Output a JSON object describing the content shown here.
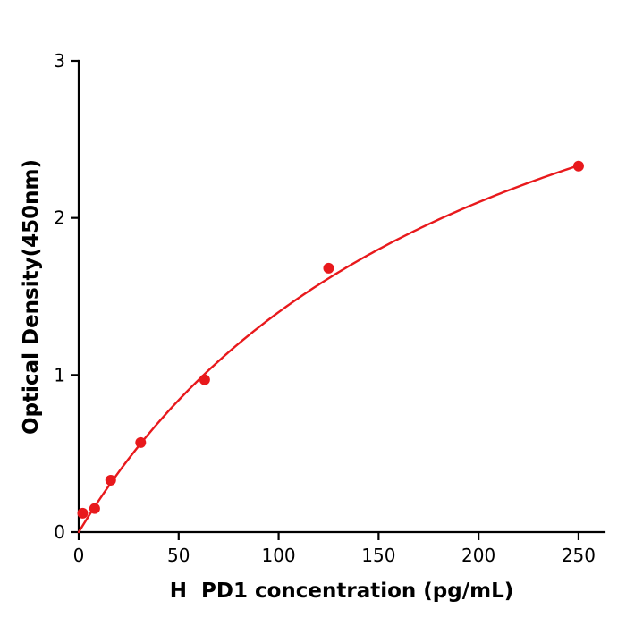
{
  "page": {
    "background": "#ffffff"
  },
  "chart_data": {
    "type": "scatter",
    "title": "",
    "xlabel": "H  PD1 concentration (pg/mL)",
    "ylabel": "Optical Density(450nm)",
    "x": [
      2,
      8,
      16,
      31,
      63,
      125,
      250
    ],
    "y": [
      0.12,
      0.15,
      0.33,
      0.57,
      0.97,
      1.68,
      2.33
    ],
    "xlim": [
      0,
      263
    ],
    "ylim": [
      0,
      3
    ],
    "xticks": [
      0,
      50,
      100,
      150,
      200,
      250
    ],
    "yticks": [
      0,
      1,
      2,
      3
    ],
    "grid": false,
    "legend": null,
    "point_color": "#e8191c",
    "line_color": "#e8191c",
    "axis_color": "#000000",
    "curve_fit": {
      "type": "saturation",
      "a": 4.2,
      "b": 200
    }
  }
}
